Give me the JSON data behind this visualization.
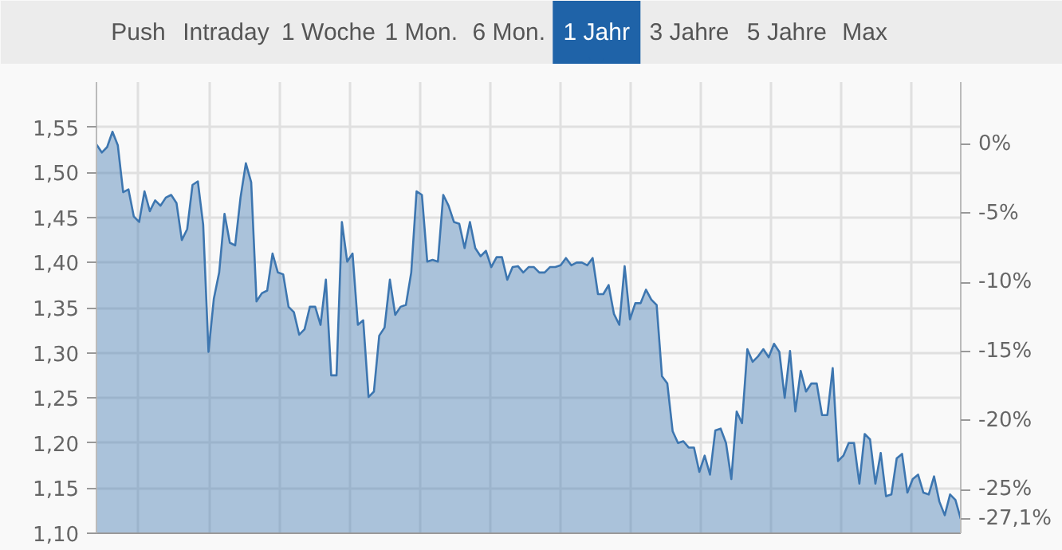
{
  "chart_data": {
    "type": "area",
    "annotations": [
      "Push",
      "Intraday",
      "1 Woche",
      "1 Mon.",
      "6 Mon.",
      "1 Jahr",
      "3 Jahre",
      "5 Jahre",
      "Max"
    ],
    "categories": [
      null,
      null,
      null,
      null,
      null,
      null,
      null,
      null,
      null,
      null,
      null,
      null,
      null,
      null,
      null,
      null,
      null,
      null,
      null,
      null,
      null,
      null,
      null,
      null,
      null,
      null,
      null,
      null,
      null,
      null,
      null,
      null,
      null,
      null,
      null,
      null,
      null,
      null,
      null,
      null,
      null,
      null,
      null,
      null,
      null,
      null,
      null,
      null,
      null,
      null,
      null,
      null,
      null,
      null,
      null,
      null,
      null,
      null,
      null,
      null,
      null,
      null,
      null,
      null,
      null,
      null,
      null,
      null,
      null,
      null,
      null,
      null,
      null,
      null,
      null,
      null,
      null,
      null,
      null,
      null,
      null,
      null,
      null,
      null,
      null,
      null,
      null,
      null,
      null,
      null,
      null,
      null,
      null,
      null,
      null,
      null,
      null,
      null,
      null,
      null,
      null,
      null,
      null,
      null,
      null,
      null,
      null,
      null,
      null,
      null,
      null,
      null,
      null,
      null,
      null,
      null,
      null,
      null,
      null,
      null,
      null,
      null,
      null,
      null,
      null,
      null,
      null,
      null,
      null,
      null,
      null,
      null,
      null,
      null,
      null,
      null,
      null,
      null,
      null,
      null,
      null,
      null,
      null,
      null,
      null,
      null,
      null,
      null,
      null,
      null,
      null,
      null,
      null,
      null,
      null,
      null,
      null,
      null,
      null,
      null,
      null,
      null,
      null
    ],
    "series": [
      {
        "color": "#3d76b0",
        "values": [
          1.531,
          1.522,
          1.528,
          1.545,
          1.53,
          1.478,
          1.481,
          1.451,
          1.445,
          1.479,
          1.457,
          1.469,
          1.463,
          1.472,
          1.475,
          1.466,
          1.425,
          1.437,
          1.486,
          1.49,
          1.442,
          1.301,
          1.36,
          1.389,
          1.454,
          1.422,
          1.419,
          1.472,
          1.51,
          1.489,
          1.357,
          1.366,
          1.369,
          1.41,
          1.389,
          1.387,
          1.351,
          1.345,
          1.32,
          1.326,
          1.351,
          1.351,
          1.331,
          1.381,
          1.275,
          1.275,
          1.445,
          1.401,
          1.41,
          1.331,
          1.336,
          1.251,
          1.257,
          1.319,
          1.328,
          1.381,
          1.342,
          1.351,
          1.353,
          1.389,
          1.479,
          1.475,
          1.401,
          1.403,
          1.401,
          1.475,
          1.463,
          1.445,
          1.443,
          1.416,
          1.445,
          1.416,
          1.407,
          1.413,
          1.395,
          1.406,
          1.406,
          1.381,
          1.395,
          1.396,
          1.389,
          1.395,
          1.395,
          1.389,
          1.389,
          1.395,
          1.395,
          1.397,
          1.405,
          1.397,
          1.4,
          1.4,
          1.397,
          1.405,
          1.365,
          1.365,
          1.375,
          1.343,
          1.331,
          1.396,
          1.337,
          1.355,
          1.355,
          1.37,
          1.359,
          1.353,
          1.274,
          1.266,
          1.213,
          1.2,
          1.202,
          1.195,
          1.195,
          1.168,
          1.186,
          1.165,
          1.214,
          1.216,
          1.2,
          1.16,
          1.235,
          1.222,
          1.304,
          1.29,
          1.296,
          1.304,
          1.295,
          1.31,
          1.301,
          1.25,
          1.302,
          1.235,
          1.28,
          1.257,
          1.266,
          1.266,
          1.231,
          1.231,
          1.283,
          1.18,
          1.186,
          1.2,
          1.2,
          1.155,
          1.21,
          1.204,
          1.155,
          1.189,
          1.141,
          1.143,
          1.183,
          1.188,
          1.145,
          1.16,
          1.165,
          1.145,
          1.143,
          1.163,
          1.135,
          1.12,
          1.143,
          1.137,
          1.116
        ]
      }
    ],
    "ylim": [
      1.1,
      1.6
    ],
    "yticks": [
      {
        "value": 1.1,
        "label": "1,10"
      },
      {
        "value": 1.15,
        "label": "1,15"
      },
      {
        "value": 1.2,
        "label": "1,20"
      },
      {
        "value": 1.25,
        "label": "1,25"
      },
      {
        "value": 1.3,
        "label": "1,30"
      },
      {
        "value": 1.35,
        "label": "1,35"
      },
      {
        "value": 1.4,
        "label": "1,40"
      },
      {
        "value": 1.45,
        "label": "1,45"
      },
      {
        "value": 1.5,
        "label": "1,50"
      },
      {
        "value": 1.55,
        "label": "1,55"
      }
    ],
    "y2lim": [
      -28.15,
      4.51
    ],
    "y2ticks": [
      {
        "value": 0,
        "label": "0%"
      },
      {
        "value": -5,
        "label": "-5%"
      },
      {
        "value": -10,
        "label": "-10%"
      },
      {
        "value": -15,
        "label": "-15%"
      },
      {
        "value": -20,
        "label": "-20%"
      },
      {
        "value": -25,
        "label": "-25%"
      },
      {
        "value": -27.1,
        "label": "-27,1%"
      }
    ],
    "tick_labels": "y",
    "grid": true
  }
}
